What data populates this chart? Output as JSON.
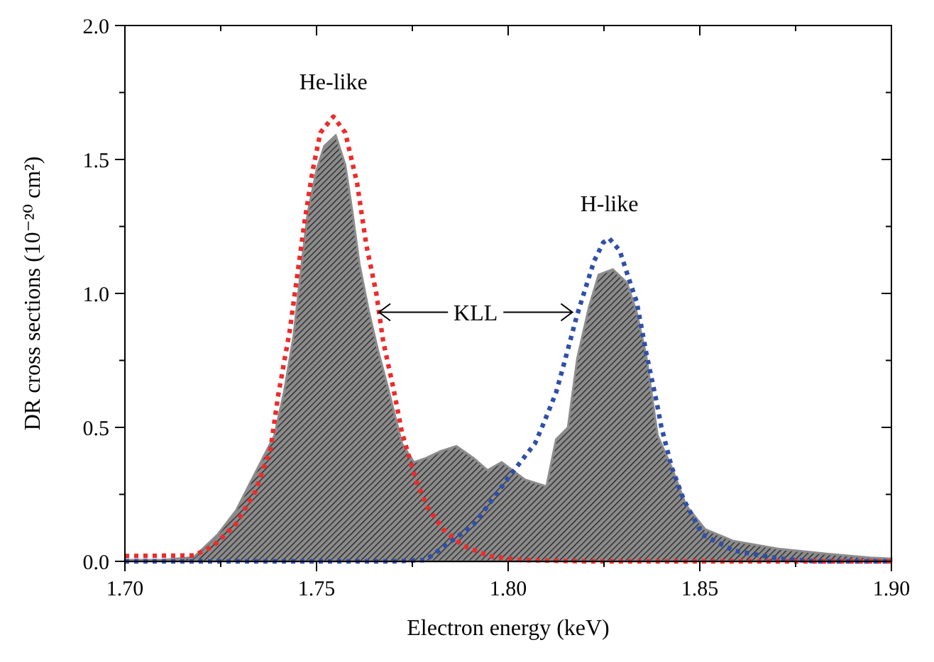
{
  "chart_data": {
    "type": "area",
    "xlabel": "Electron energy (keV)",
    "ylabel": "DR cross sections (10⁻²⁰ cm²)",
    "xlim": [
      1.7,
      1.9
    ],
    "xticks": [
      {
        "value": 1.7,
        "label": "1.70"
      },
      {
        "value": 1.725,
        "label": null
      },
      {
        "value": 1.75,
        "label": "1.75"
      },
      {
        "value": 1.775,
        "label": null
      },
      {
        "value": 1.8,
        "label": "1.80"
      },
      {
        "value": 1.825,
        "label": null
      },
      {
        "value": 1.85,
        "label": "1.85"
      },
      {
        "value": 1.875,
        "label": null
      },
      {
        "value": 1.9,
        "label": "1.90"
      }
    ],
    "ylim": [
      0,
      2.0
    ],
    "yticks": [
      {
        "value": 0,
        "label": "0.0"
      },
      {
        "value": 0.25,
        "label": null
      },
      {
        "value": 0.5,
        "label": "0.5"
      },
      {
        "value": 0.75,
        "label": null
      },
      {
        "value": 1.0,
        "label": "1.0"
      },
      {
        "value": 1.25,
        "label": null
      },
      {
        "value": 1.5,
        "label": "1.5"
      },
      {
        "value": 1.75,
        "label": null
      },
      {
        "value": 2.0,
        "label": "2.0"
      }
    ],
    "grid": false,
    "series": [
      {
        "color": "#8c8c8c",
        "x": [
          1.7,
          1.71,
          1.718,
          1.7242,
          1.729,
          1.734,
          1.739,
          1.7415,
          1.744,
          1.7458,
          1.7477,
          1.75,
          1.752,
          1.755,
          1.7575,
          1.7594,
          1.7612,
          1.7637,
          1.766,
          1.7686,
          1.7723,
          1.7754,
          1.7785,
          1.7822,
          1.7865,
          1.791,
          1.7946,
          1.7983,
          1.8044,
          1.81,
          1.8125,
          1.8156,
          1.818,
          1.8211,
          1.8236,
          1.8273,
          1.831,
          1.8335,
          1.836,
          1.839,
          1.8427,
          1.8464,
          1.8514,
          1.8588,
          1.871,
          1.8835,
          1.8945,
          1.9
        ],
        "values": [
          0.005,
          0.005,
          0.016,
          0.1,
          0.19,
          0.33,
          0.47,
          0.63,
          0.84,
          1.07,
          1.3,
          1.46,
          1.55,
          1.59,
          1.48,
          1.3,
          1.11,
          0.93,
          0.79,
          0.65,
          0.44,
          0.37,
          0.385,
          0.41,
          0.43,
          0.385,
          0.34,
          0.37,
          0.305,
          0.28,
          0.455,
          0.5,
          0.755,
          0.95,
          1.07,
          1.09,
          1.04,
          0.93,
          0.77,
          0.47,
          0.35,
          0.21,
          0.12,
          0.076,
          0.046,
          0.028,
          0.014,
          0.01
        ]
      },
      {
        "type": "line",
        "color": "#ee2b2b",
        "line_style": "dotted",
        "x": [
          1.7,
          1.718,
          1.723,
          1.729,
          1.734,
          1.738,
          1.74,
          1.743,
          1.745,
          1.747,
          1.749,
          1.751,
          1.7544,
          1.7575,
          1.7606,
          1.763,
          1.7656,
          1.7674,
          1.77,
          1.7723,
          1.776,
          1.779,
          1.783,
          1.788,
          1.795,
          1.803,
          1.82,
          1.9
        ],
        "values": [
          0.02,
          0.022,
          0.056,
          0.14,
          0.26,
          0.42,
          0.62,
          0.86,
          1.07,
          1.28,
          1.46,
          1.6,
          1.66,
          1.6,
          1.41,
          1.18,
          1.0,
          0.82,
          0.65,
          0.48,
          0.3,
          0.2,
          0.12,
          0.06,
          0.02,
          0.005,
          0,
          0
        ]
      },
      {
        "type": "line",
        "color": "#2f4fa8",
        "line_style": "dotted",
        "x": [
          1.7,
          1.77,
          1.7785,
          1.791,
          1.801,
          1.807,
          1.8094,
          1.8125,
          1.815,
          1.8178,
          1.8193,
          1.8224,
          1.8248,
          1.8264,
          1.8291,
          1.8316,
          1.8335,
          1.8347,
          1.836,
          1.8388,
          1.84,
          1.8427,
          1.8458,
          1.8507,
          1.8588,
          1.871,
          1.88,
          1.9
        ],
        "values": [
          0,
          0,
          0.005,
          0.137,
          0.33,
          0.44,
          0.52,
          0.63,
          0.76,
          0.91,
          0.98,
          1.12,
          1.19,
          1.205,
          1.16,
          1.05,
          0.97,
          0.88,
          0.78,
          0.59,
          0.5,
          0.35,
          0.23,
          0.1,
          0.04,
          0.01,
          0,
          0
        ]
      }
    ],
    "annotations": [
      "He-like",
      "H-like",
      {
        "text": "KLL",
        "x": 1.7663,
        "y": 0.93
      }
    ]
  }
}
